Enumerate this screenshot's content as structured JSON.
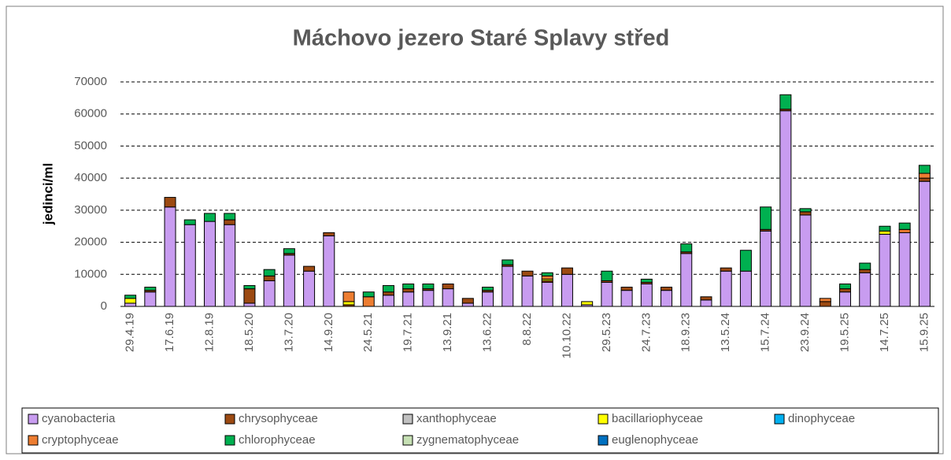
{
  "chart_data": {
    "type": "stacked_bar",
    "title": "Máchovo jezero Staré Splavy střed",
    "y_label": "jedinci/ml",
    "categories": [
      "29.4.19",
      null,
      "17.6.19",
      null,
      "12.8.19",
      null,
      "18.5.20",
      null,
      "13.7.20",
      null,
      "14.9.20",
      null,
      "24.5.21",
      null,
      "19.7.21",
      null,
      "13.9.21",
      null,
      "13.6.22",
      null,
      "8.8.22",
      null,
      "10.10.22",
      null,
      "29.5.23",
      null,
      "24.7.23",
      null,
      "18.9.23",
      null,
      "13.5.24",
      null,
      "15.7.24",
      null,
      "23.9.24",
      null,
      "19.5.25",
      null,
      "14.7.25",
      null,
      "15.9.25"
    ],
    "series": [
      {
        "name": "cyanobacteria",
        "color": "#c89cf0",
        "values": [
          1000,
          4500,
          31000,
          25500,
          26500,
          25500,
          1000,
          8000,
          16000,
          11000,
          22000,
          0,
          0,
          3500,
          4500,
          5000,
          5500,
          1000,
          4500,
          12500,
          9500,
          7500,
          10000,
          500,
          7500,
          5000,
          7000,
          5000,
          16500,
          2000,
          11000,
          11000,
          23500,
          61000,
          28500,
          0,
          4500,
          10500,
          22500,
          23000,
          39000
        ]
      },
      {
        "name": "chrysophyceae",
        "color": "#9c4a12",
        "values": [
          0,
          500,
          3000,
          0,
          0,
          1500,
          4500,
          1500,
          500,
          1500,
          1000,
          500,
          0,
          1000,
          1000,
          500,
          1500,
          1500,
          500,
          500,
          1500,
          500,
          2000,
          0,
          500,
          1000,
          500,
          1000,
          500,
          1000,
          1000,
          0,
          500,
          500,
          1000,
          1500,
          1000,
          1000,
          0,
          0,
          1000
        ]
      },
      {
        "name": "xanthophyceae",
        "color": "#c0c0c0",
        "values": [
          0,
          0,
          0,
          0,
          0,
          0,
          0,
          0,
          0,
          0,
          0,
          0,
          0,
          0,
          0,
          0,
          0,
          0,
          0,
          0,
          0,
          0,
          0,
          0,
          0,
          0,
          0,
          0,
          0,
          0,
          0,
          0,
          0,
          0,
          0,
          0,
          0,
          0,
          0,
          0,
          0
        ]
      },
      {
        "name": "bacillariophyceae",
        "color": "#ffff00",
        "values": [
          1500,
          0,
          0,
          0,
          0,
          0,
          0,
          0,
          0,
          0,
          0,
          1000,
          0,
          0,
          0,
          0,
          0,
          0,
          0,
          0,
          0,
          500,
          0,
          1000,
          0,
          0,
          0,
          0,
          0,
          0,
          0,
          0,
          0,
          0,
          0,
          0,
          0,
          0,
          1000,
          0,
          0
        ]
      },
      {
        "name": "dinophyceae",
        "color": "#00b0f0",
        "values": [
          0,
          0,
          0,
          0,
          0,
          0,
          0,
          0,
          0,
          0,
          0,
          0,
          0,
          0,
          0,
          0,
          0,
          0,
          0,
          0,
          0,
          0,
          0,
          0,
          0,
          0,
          0,
          0,
          0,
          0,
          0,
          0,
          0,
          0,
          0,
          0,
          0,
          0,
          0,
          0,
          0
        ]
      },
      {
        "name": "cryptophyceae",
        "color": "#ed7d31",
        "values": [
          0,
          0,
          0,
          0,
          0,
          0,
          0,
          0,
          0,
          0,
          0,
          3000,
          3000,
          0,
          0,
          0,
          0,
          0,
          0,
          0,
          0,
          1000,
          0,
          0,
          0,
          0,
          0,
          0,
          0,
          0,
          0,
          0,
          0,
          0,
          0,
          1000,
          0,
          0,
          0,
          1000,
          1500
        ]
      },
      {
        "name": "chlorophyceae",
        "color": "#00b050",
        "values": [
          1000,
          1000,
          0,
          1500,
          2500,
          2000,
          1000,
          2000,
          1500,
          0,
          0,
          0,
          1500,
          2000,
          1500,
          1500,
          0,
          0,
          1000,
          1500,
          0,
          1000,
          0,
          0,
          3000,
          0,
          1000,
          0,
          2500,
          0,
          0,
          6500,
          7000,
          4500,
          1000,
          0,
          1500,
          2000,
          1500,
          2000,
          2500
        ]
      },
      {
        "name": "zygnematophyceae",
        "color": "#c6e0b4",
        "values": [
          0,
          0,
          0,
          0,
          0,
          0,
          0,
          0,
          0,
          0,
          0,
          0,
          0,
          0,
          0,
          0,
          0,
          0,
          0,
          0,
          0,
          0,
          0,
          0,
          0,
          0,
          0,
          0,
          0,
          0,
          0,
          0,
          0,
          0,
          0,
          0,
          0,
          0,
          0,
          0,
          0
        ]
      },
      {
        "name": "euglenophyceae",
        "color": "#0070c0",
        "values": [
          0,
          0,
          0,
          0,
          0,
          0,
          0,
          0,
          0,
          0,
          0,
          0,
          0,
          0,
          0,
          0,
          0,
          0,
          0,
          0,
          0,
          0,
          0,
          0,
          0,
          0,
          0,
          0,
          0,
          0,
          0,
          0,
          0,
          0,
          0,
          0,
          0,
          0,
          0,
          0,
          0
        ]
      }
    ],
    "ylim": [
      0,
      70000
    ],
    "yticks": [
      0,
      10000,
      20000,
      30000,
      40000,
      50000,
      60000,
      70000
    ],
    "grid": true,
    "legend": "bottom"
  }
}
